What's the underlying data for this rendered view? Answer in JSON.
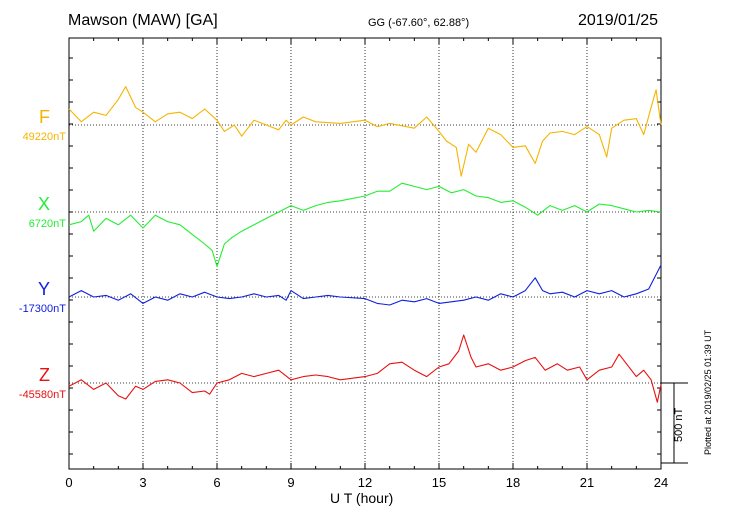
{
  "header": {
    "station": "Mawson (MAW)  [GA]",
    "coords": "GG (-67.60°,  62.88°)",
    "date": "2019/01/25"
  },
  "footer": {
    "plotted": "Plotted at 2019/02/25 01:39 UT"
  },
  "chart_data": {
    "type": "line",
    "xlabel": "U T (hour)",
    "xlim": [
      0,
      24
    ],
    "xticks": [
      "0",
      "3",
      "6",
      "9",
      "12",
      "15",
      "18",
      "21",
      "24"
    ],
    "scale_bar": {
      "label": "500 nT",
      "value_nT": 500
    },
    "grid": true,
    "series": [
      {
        "name": "F",
        "baseline_label": "49220nT",
        "baseline_nT": 49220,
        "color": "#f5b400",
        "x": [
          0,
          0.5,
          1,
          1.5,
          2,
          2.3,
          2.7,
          3,
          3.5,
          4,
          4.5,
          5,
          5.5,
          6,
          6.3,
          6.7,
          7,
          7.5,
          8,
          8.5,
          8.8,
          9,
          9.5,
          10,
          11,
          12,
          12.5,
          13,
          14,
          14.5,
          15,
          15.3,
          15.7,
          15.9,
          16.2,
          16.5,
          17,
          17.5,
          18,
          18.5,
          18.9,
          19.2,
          19.5,
          20,
          20.5,
          21,
          21.5,
          21.8,
          22,
          22.5,
          23,
          23.3,
          23.6,
          23.8,
          24
        ],
        "values": [
          49320,
          49240,
          49300,
          49280,
          49380,
          49460,
          49330,
          49300,
          49240,
          49290,
          49300,
          49260,
          49320,
          49250,
          49180,
          49220,
          49150,
          49250,
          49220,
          49190,
          49250,
          49220,
          49270,
          49240,
          49230,
          49250,
          49210,
          49230,
          49200,
          49270,
          49180,
          49120,
          49080,
          48900,
          49100,
          49050,
          49200,
          49160,
          49080,
          49090,
          48980,
          49120,
          49170,
          49180,
          49160,
          49210,
          49160,
          49020,
          49200,
          49250,
          49260,
          49160,
          49330,
          49440,
          49220
        ]
      },
      {
        "name": "X",
        "baseline_label": "6720nT",
        "baseline_nT": 6720,
        "color": "#22ee33",
        "x": [
          0,
          0.5,
          0.8,
          1,
          1.5,
          2,
          2.5,
          3,
          3.5,
          4,
          4.5,
          5,
          5.5,
          5.8,
          6,
          6.3,
          6.6,
          7,
          7.5,
          8,
          8.5,
          9,
          9.5,
          10,
          10.5,
          11,
          12,
          12.5,
          13,
          13.5,
          14,
          14.5,
          15,
          15.5,
          16,
          16.5,
          17,
          17.5,
          18,
          18.5,
          19,
          19.5,
          20,
          20.5,
          21,
          21.5,
          22,
          22.5,
          23,
          23.5,
          24
        ],
        "values": [
          6640,
          6660,
          6700,
          6600,
          6680,
          6640,
          6700,
          6620,
          6700,
          6660,
          6640,
          6580,
          6520,
          6480,
          6380,
          6520,
          6560,
          6600,
          6640,
          6680,
          6720,
          6760,
          6730,
          6760,
          6780,
          6790,
          6820,
          6850,
          6850,
          6900,
          6880,
          6860,
          6880,
          6840,
          6860,
          6820,
          6810,
          6780,
          6790,
          6750,
          6700,
          6760,
          6730,
          6760,
          6720,
          6770,
          6760,
          6740,
          6720,
          6730,
          6720
        ]
      },
      {
        "name": "Y",
        "baseline_label": "-17300nT",
        "baseline_nT": -17300,
        "color": "#1020dd",
        "x": [
          0,
          0.5,
          1,
          1.5,
          2,
          2.5,
          3,
          3.5,
          4,
          4.5,
          5,
          5.5,
          6,
          6.5,
          7,
          7.5,
          8,
          8.5,
          8.8,
          9,
          9.5,
          10,
          10.5,
          11,
          12,
          12.5,
          13,
          13.5,
          14,
          14.5,
          15,
          15.5,
          16,
          16.5,
          17,
          17.5,
          18,
          18.5,
          18.9,
          19.2,
          19.5,
          20,
          20.5,
          21,
          21.5,
          22,
          22.5,
          23,
          23.5,
          24
        ],
        "values": [
          -17300,
          -17260,
          -17300,
          -17290,
          -17320,
          -17280,
          -17340,
          -17300,
          -17320,
          -17280,
          -17300,
          -17270,
          -17300,
          -17310,
          -17300,
          -17280,
          -17300,
          -17290,
          -17320,
          -17260,
          -17310,
          -17300,
          -17290,
          -17300,
          -17310,
          -17340,
          -17350,
          -17320,
          -17330,
          -17310,
          -17340,
          -17330,
          -17320,
          -17300,
          -17320,
          -17280,
          -17300,
          -17260,
          -17180,
          -17260,
          -17280,
          -17270,
          -17300,
          -17260,
          -17280,
          -17260,
          -17300,
          -17280,
          -17250,
          -17100
        ]
      },
      {
        "name": "Z",
        "baseline_label": "-45580nT",
        "baseline_nT": -45580,
        "color": "#e81010",
        "x": [
          0,
          0.5,
          1,
          1.5,
          2,
          2.3,
          2.7,
          3,
          3.5,
          4,
          4.5,
          5,
          5.5,
          5.7,
          6,
          6.5,
          7,
          7.5,
          8,
          8.5,
          9,
          9.5,
          10,
          10.5,
          11,
          12,
          12.5,
          13,
          13.5,
          14,
          14.5,
          15,
          15.4,
          15.8,
          16,
          16.3,
          16.5,
          17,
          17.5,
          18,
          18.5,
          18.9,
          19.3,
          19.8,
          20.2,
          20.7,
          21,
          21.5,
          22,
          22.3,
          22.6,
          23,
          23.3,
          23.6,
          23.85,
          24
        ],
        "values": [
          -45600,
          -45560,
          -45620,
          -45580,
          -45660,
          -45680,
          -45600,
          -45620,
          -45570,
          -45560,
          -45580,
          -45640,
          -45630,
          -45650,
          -45580,
          -45560,
          -45520,
          -45540,
          -45520,
          -45500,
          -45560,
          -45540,
          -45530,
          -45540,
          -45560,
          -45540,
          -45520,
          -45460,
          -45450,
          -45500,
          -45540,
          -45480,
          -45460,
          -45380,
          -45280,
          -45420,
          -45480,
          -45460,
          -45500,
          -45480,
          -45440,
          -45420,
          -45500,
          -45460,
          -45500,
          -45480,
          -45560,
          -45500,
          -45480,
          -45400,
          -45460,
          -45540,
          -45500,
          -45560,
          -45700,
          -45590
        ]
      }
    ]
  }
}
